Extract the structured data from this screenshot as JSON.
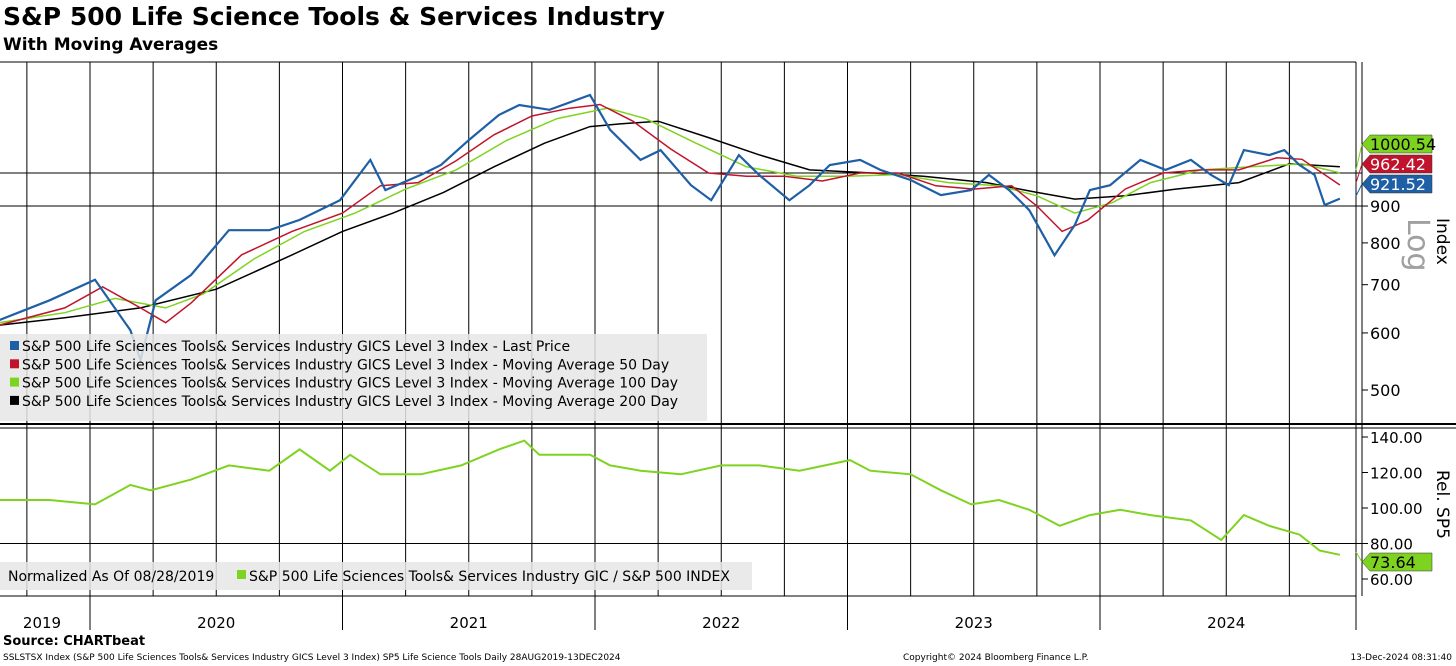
{
  "header": {
    "title": "S&P 500 Life Science Tools & Services Industry",
    "subtitle": "With Moving Averages"
  },
  "footer": {
    "source": "Source: CHARTbeat",
    "description": "SSLSTSX Index (S&P 500 Life Sciences Tools& Services Industry GICS Level 3 Index) SP5 Life Science Tools  Daily 28AUG2019-13DEC2024",
    "copyright": "Copyright© 2024 Bloomberg Finance L.P.",
    "timestamp": "13-Dec-2024 08:31:40"
  },
  "colors": {
    "price": "#1f5fa6",
    "ma50": "#c0142c",
    "ma100": "#7ed321",
    "ma200": "#000000",
    "rel": "#7ed321"
  },
  "chart_data": [
    {
      "type": "line",
      "panel": "upper",
      "scale": "log",
      "ylabel": "Index",
      "scale_label": "Log",
      "yticks": [
        500,
        600,
        700,
        800,
        900
      ],
      "ylim": [
        470,
        1330
      ],
      "xlim": [
        2019.62,
        2024.98
      ],
      "xticks": [
        "2019",
        "2020",
        "2021",
        "2022",
        "2023",
        "2024"
      ],
      "legend": [
        "S&P 500 Life Sciences Tools& Services Industry GICS Level 3 Index - Last Price",
        "S&P 500 Life Sciences Tools& Services Industry GICS Level 3 Index - Moving Average 50 Day",
        "S&P 500 Life Sciences Tools& Services Industry GICS Level 3 Index - Moving Average 100 Day",
        "S&P 500 Life Sciences Tools& Services Industry GICS Level 3 Index - Moving Average 200 Day"
      ],
      "legend_position": "bottom-left",
      "last_values": [
        "1000.54",
        "962.42",
        "921.52"
      ],
      "series": [
        {
          "name": "Last Price",
          "x": [
            2019.64,
            2019.84,
            2020.02,
            2020.16,
            2020.2,
            2020.26,
            2020.4,
            2020.55,
            2020.71,
            2020.83,
            2020.99,
            2021.11,
            2021.17,
            2021.31,
            2021.39,
            2021.5,
            2021.62,
            2021.7,
            2021.82,
            2021.98,
            2022.06,
            2022.18,
            2022.26,
            2022.38,
            2022.46,
            2022.57,
            2022.65,
            2022.77,
            2022.85,
            2022.93,
            2023.05,
            2023.13,
            2023.25,
            2023.37,
            2023.49,
            2023.56,
            2023.64,
            2023.72,
            2023.82,
            2023.9,
            2023.96,
            2024.04,
            2024.16,
            2024.26,
            2024.36,
            2024.44,
            2024.51,
            2024.57,
            2024.67,
            2024.73,
            2024.79,
            2024.85,
            2024.89,
            2024.95
          ],
          "values": [
            625,
            666,
            711,
            605,
            550,
            666,
            722,
            833,
            833,
            861,
            917,
            1043,
            947,
            994,
            1026,
            1111,
            1204,
            1243,
            1224,
            1283,
            1148,
            1043,
            1076,
            962,
            917,
            1059,
            994,
            917,
            962,
            1026,
            1043,
            1010,
            978,
            932,
            947,
            994,
            947,
            888,
            769,
            847,
            947,
            962,
            1043,
            1010,
            1043,
            994,
            962,
            1076,
            1059,
            1076,
            1026,
            994,
            903,
            921.52
          ]
        },
        {
          "name": "Moving Average 50 Day",
          "x": [
            2019.64,
            2019.9,
            2020.05,
            2020.2,
            2020.3,
            2020.4,
            2020.6,
            2020.8,
            2021.0,
            2021.15,
            2021.3,
            2021.45,
            2021.6,
            2021.75,
            2021.9,
            2022.02,
            2022.15,
            2022.3,
            2022.45,
            2022.6,
            2022.75,
            2022.9,
            2023.05,
            2023.2,
            2023.35,
            2023.5,
            2023.65,
            2023.75,
            2023.85,
            2023.95,
            2024.1,
            2024.25,
            2024.4,
            2024.55,
            2024.7,
            2024.8,
            2024.95
          ],
          "values": [
            615,
            650,
            695,
            650,
            620,
            660,
            770,
            830,
            880,
            960,
            970,
            1040,
            1130,
            1200,
            1230,
            1245,
            1180,
            1080,
            1000,
            990,
            990,
            975,
            1000,
            1000,
            960,
            950,
            960,
            900,
            830,
            860,
            950,
            1000,
            1010,
            1010,
            1050,
            1045,
            962.42
          ]
        },
        {
          "name": "Moving Average 100 Day",
          "x": [
            2019.64,
            2019.9,
            2020.1,
            2020.3,
            2020.45,
            2020.65,
            2020.85,
            2021.05,
            2021.25,
            2021.45,
            2021.65,
            2021.85,
            2022.05,
            2022.2,
            2022.4,
            2022.6,
            2022.8,
            2023.0,
            2023.2,
            2023.4,
            2023.6,
            2023.75,
            2023.9,
            2024.05,
            2024.2,
            2024.4,
            2024.6,
            2024.8,
            2024.95
          ],
          "values": [
            620,
            640,
            670,
            650,
            680,
            760,
            830,
            880,
            950,
            1010,
            1110,
            1190,
            1230,
            1190,
            1100,
            1020,
            990,
            990,
            995,
            970,
            960,
            930,
            880,
            910,
            970,
            1010,
            1020,
            1030,
            1000.54
          ]
        },
        {
          "name": "Moving Average 200 Day",
          "x": [
            2019.64,
            2019.9,
            2020.2,
            2020.5,
            2020.8,
            2021.0,
            2021.2,
            2021.4,
            2021.6,
            2021.8,
            2021.98,
            2022.1,
            2022.25,
            2022.45,
            2022.65,
            2022.85,
            2023.1,
            2023.3,
            2023.55,
            2023.75,
            2023.9,
            2024.1,
            2024.3,
            2024.55,
            2024.75,
            2024.95
          ],
          "values": [
            615,
            630,
            650,
            690,
            770,
            830,
            880,
            940,
            1020,
            1100,
            1160,
            1170,
            1180,
            1120,
            1060,
            1010,
            1000,
            990,
            970,
            940,
            920,
            930,
            950,
            970,
            1030,
            1020
          ]
        }
      ]
    },
    {
      "type": "line",
      "panel": "lower",
      "ylabel": "Rel. SP5",
      "yticks": [
        "140.00",
        "120.00",
        "100.00",
        "80.00",
        "60.00"
      ],
      "ylim": [
        57,
        142
      ],
      "note": "Normalized As Of 08/28/2019",
      "legend": [
        "S&P 500 Life Sciences Tools& Services Industry GIC / S&P 500 INDEX"
      ],
      "legend_position": "bottom-left",
      "last_value": "73.64",
      "series": [
        {
          "name": "S&P 500 Life Sciences Tools& Services Industry GIC / S&P 500 INDEX",
          "x": [
            2019.64,
            2019.84,
            2020.02,
            2020.16,
            2020.24,
            2020.4,
            2020.55,
            2020.71,
            2020.83,
            2020.95,
            2021.03,
            2021.15,
            2021.31,
            2021.47,
            2021.62,
            2021.72,
            2021.78,
            2021.98,
            2022.06,
            2022.18,
            2022.34,
            2022.5,
            2022.65,
            2022.81,
            2023.01,
            2023.09,
            2023.25,
            2023.37,
            2023.49,
            2023.6,
            2023.72,
            2023.84,
            2023.96,
            2024.08,
            2024.2,
            2024.36,
            2024.48,
            2024.57,
            2024.67,
            2024.79,
            2024.87,
            2024.95
          ],
          "values": [
            104.5,
            104.5,
            102,
            113,
            110,
            116,
            124,
            121,
            133,
            121,
            130,
            119,
            119,
            124,
            133,
            138,
            130,
            130,
            124,
            121,
            119,
            124,
            124,
            121,
            127,
            121,
            119,
            110,
            102,
            104.5,
            99,
            90,
            96,
            99,
            96,
            93,
            82,
            96,
            90,
            85,
            76,
            73.64
          ]
        }
      ]
    }
  ]
}
